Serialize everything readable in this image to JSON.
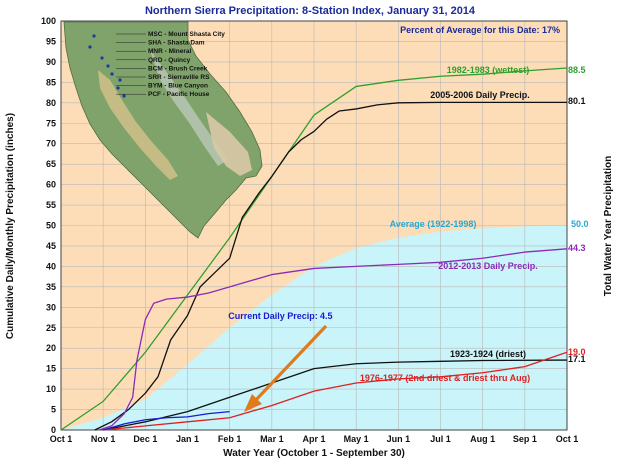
{
  "chart_data": {
    "type": "line",
    "title": "Northern Sierra Precipitation: 8-Station Index, January 31, 2014",
    "subtitle": "Percent of Average for this Date: 17%",
    "xlabel": "Water Year (October 1 - September 30)",
    "ylabel": "Cumulative Daily/Monthly Precipitation (inches)",
    "ylabel_right": "Total Water Year Precipitation",
    "x_ticks": [
      "Oct 1",
      "Nov 1",
      "Dec 1",
      "Jan 1",
      "Feb 1",
      "Mar 1",
      "Apr 1",
      "May 1",
      "Jun 1",
      "Jul 1",
      "Aug 1",
      "Sep 1",
      "Oct 1"
    ],
    "y_ticks": [
      "0",
      "5",
      "10",
      "15",
      "20",
      "25",
      "30",
      "35",
      "40",
      "45",
      "50",
      "55",
      "60",
      "65",
      "70",
      "75",
      "80",
      "85",
      "90",
      "95",
      "100"
    ],
    "ylim": [
      0,
      100
    ],
    "xlim": [
      0,
      12
    ],
    "grid": true,
    "map_legend": [
      "MSC - Mount Shasta City",
      "SHA - Shasta Dam",
      "MNR - Mineral",
      "QRD - Quincy",
      "BCM - Brush Creek",
      "SRR - Sierraville RS",
      "BYM - Blue Canyon",
      "PCF - Pacific House"
    ],
    "series": [
      {
        "name": "Average (1922-1998)",
        "label": "Average (1922-1998)",
        "value_label": "50.0",
        "style": "area",
        "color": "#c8f4fa",
        "label_color": "#2aa8d0",
        "points": [
          [
            0,
            0
          ],
          [
            1,
            3
          ],
          [
            2,
            7.5
          ],
          [
            3,
            16
          ],
          [
            4,
            25
          ],
          [
            5,
            33
          ],
          [
            6,
            40
          ],
          [
            7,
            44.5
          ],
          [
            8,
            47
          ],
          [
            9,
            48.5
          ],
          [
            10,
            49.3
          ],
          [
            11,
            49.8
          ],
          [
            12,
            50
          ]
        ]
      },
      {
        "name": "1982-1983 (wettest)",
        "label": "1982-1983 (wettest)",
        "value_label": "88.5",
        "color": "#2ea02e",
        "label_color": "#2ea02e",
        "points": [
          [
            0,
            0
          ],
          [
            1,
            7
          ],
          [
            2,
            19
          ],
          [
            3,
            33
          ],
          [
            4,
            47
          ],
          [
            5,
            62
          ],
          [
            6,
            77
          ],
          [
            7,
            84
          ],
          [
            8,
            85.5
          ],
          [
            9,
            86.5
          ],
          [
            10,
            87
          ],
          [
            11,
            87.8
          ],
          [
            12,
            88.5
          ]
        ]
      },
      {
        "name": "2005-2006 Daily Precip.",
        "label": "2005-2006 Daily Precip.",
        "value_label": "80.1",
        "color": "#111111",
        "label_color": "#111111",
        "points": [
          [
            0.8,
            0
          ],
          [
            1.2,
            2
          ],
          [
            1.6,
            5
          ],
          [
            2,
            9
          ],
          [
            2.3,
            13
          ],
          [
            2.6,
            22
          ],
          [
            3,
            28
          ],
          [
            3.3,
            35
          ],
          [
            3.6,
            38
          ],
          [
            4,
            42
          ],
          [
            4.3,
            52
          ],
          [
            4.7,
            58
          ],
          [
            5,
            62
          ],
          [
            5.4,
            68
          ],
          [
            5.7,
            71
          ],
          [
            6,
            73
          ],
          [
            6.3,
            76
          ],
          [
            6.6,
            78
          ],
          [
            7,
            78.5
          ],
          [
            7.5,
            79.5
          ],
          [
            8,
            80
          ],
          [
            9,
            80.1
          ],
          [
            12,
            80.1
          ]
        ]
      },
      {
        "name": "2012-2013 Daily Precip.",
        "label": "2012-2013 Daily Precip.",
        "value_label": "44.3",
        "color": "#8a2bb8",
        "label_color": "#8a2bb8",
        "points": [
          [
            0.9,
            0
          ],
          [
            1.2,
            1
          ],
          [
            1.5,
            4
          ],
          [
            1.7,
            8
          ],
          [
            1.8,
            17
          ],
          [
            2,
            27
          ],
          [
            2.2,
            31
          ],
          [
            2.5,
            32
          ],
          [
            3,
            32.5
          ],
          [
            3.5,
            33.5
          ],
          [
            4,
            35
          ],
          [
            5,
            38
          ],
          [
            6,
            39.5
          ],
          [
            7,
            40
          ],
          [
            8,
            40.5
          ],
          [
            9,
            41
          ],
          [
            10,
            42
          ],
          [
            11,
            43.5
          ],
          [
            12,
            44.3
          ]
        ]
      },
      {
        "name": "1923-1924 (driest)",
        "label": "1923-1924 (driest)",
        "value_label": "17.1",
        "color": "#111111",
        "label_color": "#111111",
        "points": [
          [
            1,
            0
          ],
          [
            2,
            2
          ],
          [
            3,
            4.5
          ],
          [
            4,
            8
          ],
          [
            5,
            11.5
          ],
          [
            6,
            15
          ],
          [
            7,
            16.2
          ],
          [
            8,
            16.6
          ],
          [
            9,
            16.8
          ],
          [
            10,
            17
          ],
          [
            12,
            17.1
          ]
        ]
      },
      {
        "name": "1976-1977 (2nd driest & driest thru Aug)",
        "label": "1976-1977 (2nd driest & driest thru Aug)",
        "value_label": "19.0",
        "color": "#e02020",
        "label_color": "#e02020",
        "points": [
          [
            1,
            0
          ],
          [
            2,
            1
          ],
          [
            3,
            2
          ],
          [
            4,
            3
          ],
          [
            5,
            6
          ],
          [
            6,
            9.5
          ],
          [
            7,
            11.5
          ],
          [
            8,
            12.5
          ],
          [
            9,
            13
          ],
          [
            10,
            14
          ],
          [
            11,
            15.5
          ],
          [
            12,
            19
          ]
        ]
      },
      {
        "name": "Current Daily Precip:",
        "label": "Current Daily Precip:",
        "value_label": "4.5",
        "color": "#1a1ad0",
        "label_color": "#1a1ad0",
        "points": [
          [
            1,
            0
          ],
          [
            1.5,
            1.5
          ],
          [
            2,
            2.5
          ],
          [
            2.5,
            3
          ],
          [
            3,
            3.2
          ],
          [
            3.5,
            4
          ],
          [
            4,
            4.5
          ]
        ]
      }
    ]
  }
}
